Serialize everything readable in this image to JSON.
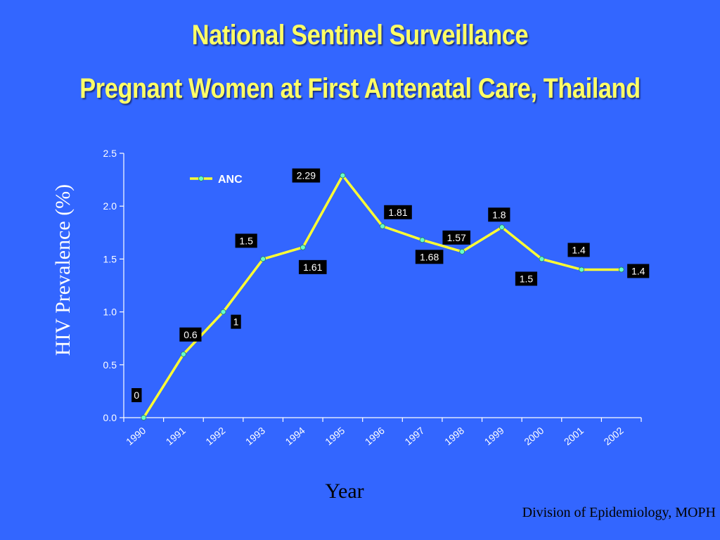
{
  "title": "National Sentinel Surveillance",
  "subtitle": "Pregnant Women at First Antenatal Care, Thailand",
  "footer": "Division of Epidemiology, MOPH",
  "chart_data": {
    "type": "line",
    "x": [
      "1990",
      "1991",
      "1992",
      "1993",
      "1994",
      "1995",
      "1996",
      "1997",
      "1998",
      "1999",
      "2000",
      "2001",
      "2002"
    ],
    "series": [
      {
        "name": "ANC",
        "values": [
          0,
          0.6,
          1,
          1.5,
          1.61,
          2.29,
          1.81,
          1.68,
          1.57,
          1.8,
          1.5,
          1.4,
          1.4
        ],
        "data_labels": [
          "0",
          "0.6",
          "1",
          "1.5",
          "1.61",
          "2.29",
          "1.81",
          "1.68",
          "1.57",
          "1.8",
          "1.5",
          "1.4",
          "1.4"
        ]
      }
    ],
    "xlabel": "Year",
    "ylabel": "HIV Prevalence (%)",
    "ylim": [
      0,
      2.5
    ],
    "yticks": [
      "0.0",
      "0.5",
      "1.0",
      "1.5",
      "2.0",
      "2.5"
    ],
    "grid": false,
    "legend": "top-left",
    "colors": {
      "background": "#3366ff",
      "line": "#ffff33",
      "marker": "#66ffcc",
      "label_box": "#000000",
      "label_text": "#ffffff",
      "title": "#ffff66"
    }
  }
}
